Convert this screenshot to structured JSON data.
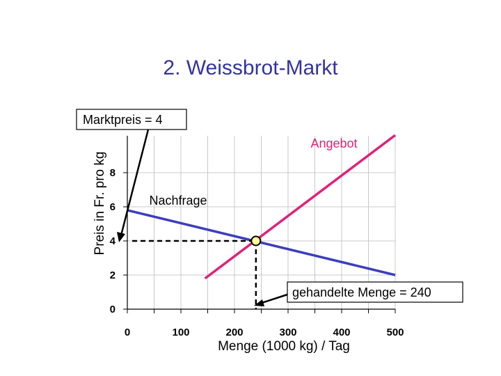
{
  "chart_data": {
    "type": "line",
    "title": "2. Weissbrot-Markt",
    "xlabel": "Menge (1000 kg) / Tag",
    "ylabel": "Preis in Fr. pro kg",
    "xlim": [
      0,
      500
    ],
    "ylim": [
      0,
      10
    ],
    "x_ticks": [
      "0",
      "100",
      "200",
      "300",
      "400",
      "500"
    ],
    "y_ticks": [
      "0",
      "2",
      "4",
      "6",
      "8"
    ],
    "grid": true,
    "series": [
      {
        "name": "Angebot",
        "color": "#e0207a",
        "x": [
          145,
          500
        ],
        "y": [
          1.8,
          10.2
        ]
      },
      {
        "name": "Nachfrage",
        "color": "#3d3dbf",
        "x": [
          0,
          500
        ],
        "y": [
          5.8,
          2.0
        ]
      }
    ],
    "equilibrium": {
      "x": 240,
      "y": 4
    },
    "annotations": {
      "price": "Marktpreis = 4",
      "quantity": "gehandelte Menge = 240"
    }
  }
}
